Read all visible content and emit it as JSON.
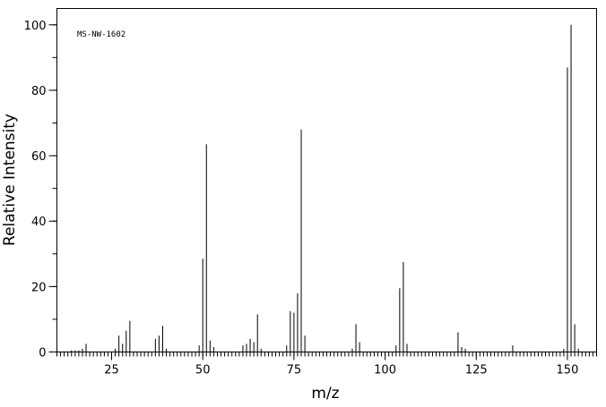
{
  "chart_data": {
    "type": "stem",
    "annotation": "MS-NW-1602",
    "xlabel": "m/z",
    "ylabel": "Relative Intensity",
    "x": [
      14,
      15,
      16,
      17,
      18,
      26,
      27,
      28,
      29,
      30,
      37,
      38,
      39,
      40,
      49,
      50,
      51,
      52,
      53,
      61,
      62,
      63,
      64,
      65,
      66,
      73,
      74,
      75,
      76,
      77,
      78,
      91,
      92,
      93,
      103,
      104,
      105,
      106,
      120,
      121,
      122,
      135,
      149,
      150,
      151,
      152,
      153
    ],
    "values": [
      0.5,
      0.5,
      0.5,
      1,
      2.5,
      1,
      5,
      2.5,
      6.5,
      9.5,
      4,
      5,
      8,
      1,
      2,
      28.5,
      63.5,
      3.5,
      1.5,
      2,
      2.5,
      4,
      3,
      11.5,
      1,
      2,
      12.5,
      12,
      18,
      68,
      5,
      1,
      8.5,
      3,
      2,
      19.5,
      27.5,
      2.5,
      6,
      1.5,
      1,
      2,
      1,
      87,
      100,
      8.5,
      1
    ],
    "color": "#000000",
    "xlim": [
      10,
      158
    ],
    "xticks": [
      25,
      50,
      75,
      100,
      125,
      150
    ],
    "x_minor_step": 1,
    "ylim": [
      0,
      105
    ],
    "yticks": [
      0,
      20,
      40,
      60,
      80,
      100
    ],
    "y_minor_step": 10
  }
}
